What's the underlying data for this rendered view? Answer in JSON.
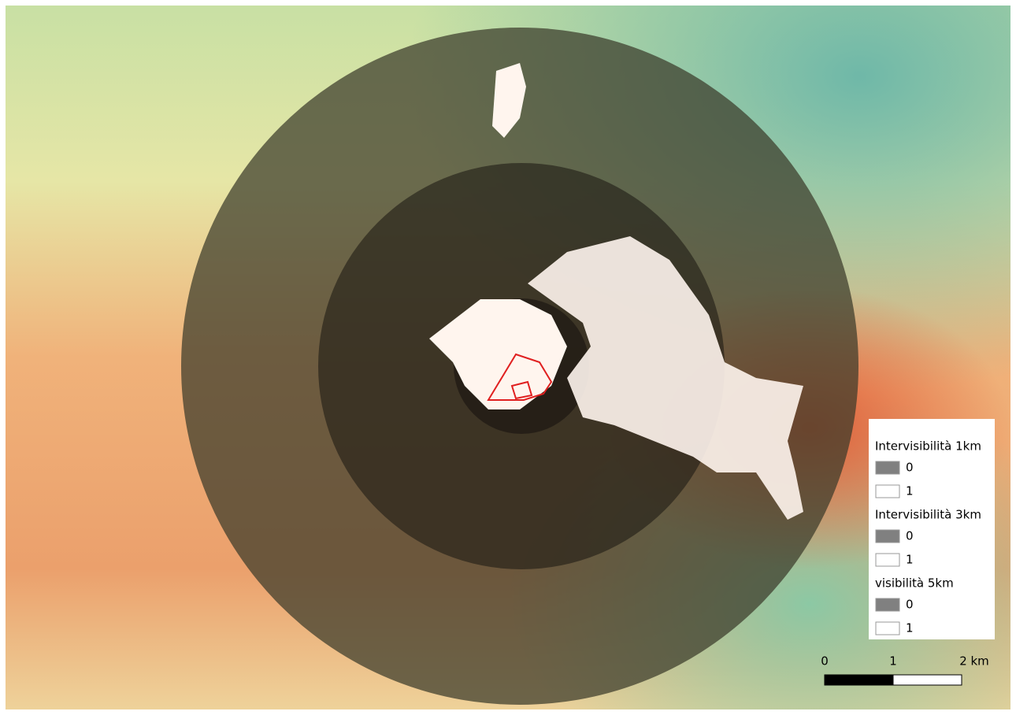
{
  "legend": {
    "groups": [
      {
        "title": "Intervisibilità 1km",
        "items": [
          {
            "label": "0",
            "color": "#808080"
          },
          {
            "label": "1",
            "color": "#ffffff"
          }
        ]
      },
      {
        "title": "Intervisibilità 3km",
        "items": [
          {
            "label": "0",
            "color": "#808080"
          },
          {
            "label": "1",
            "color": "#ffffff"
          }
        ]
      },
      {
        "title": "visibilità 5km",
        "items": [
          {
            "label": "0",
            "color": "#808080"
          },
          {
            "label": "1",
            "color": "#ffffff"
          }
        ]
      }
    ]
  },
  "scale_bar": {
    "labels": [
      "0",
      "1",
      "2 km"
    ]
  }
}
